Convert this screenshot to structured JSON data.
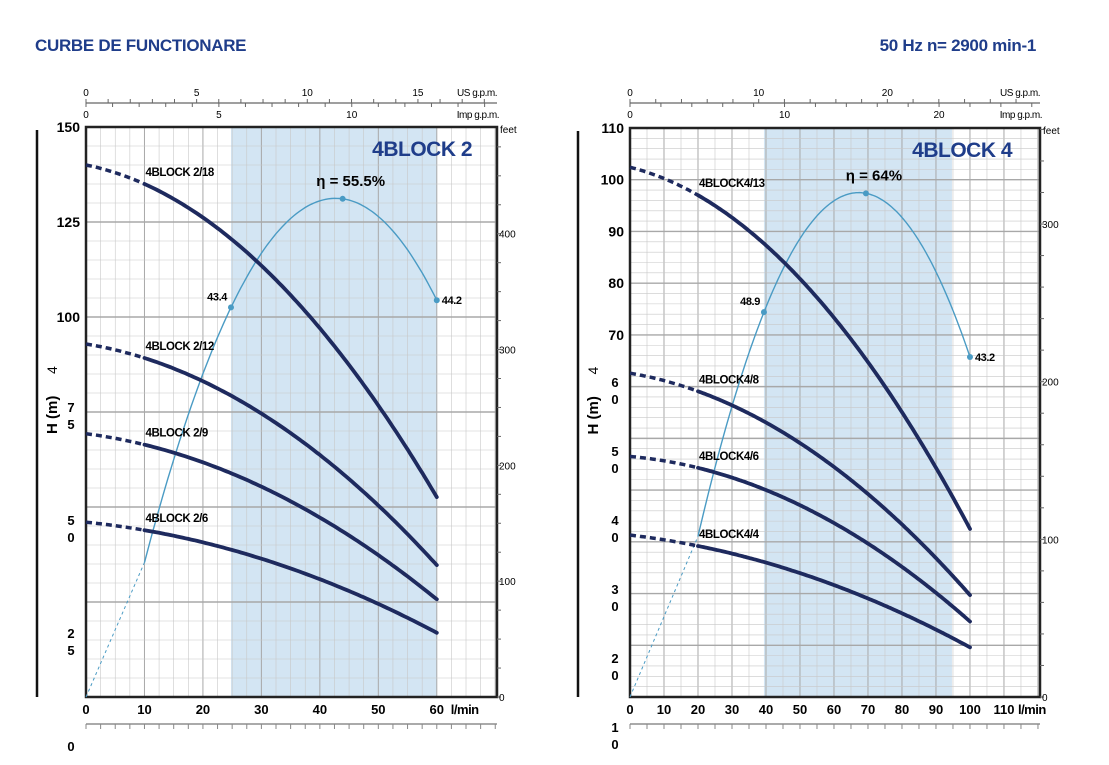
{
  "header": {
    "title": "CURBE DE FUNCTIONARE",
    "speed": "50 Hz  n= 2900 min-1"
  },
  "units": {
    "us_gpm_per_lmin": 0.2642,
    "imp_gpm_per_lmin": 0.22,
    "feet_per_m": 3.281
  },
  "chart_data": [
    {
      "type": "line",
      "title": "4BLOCK 2",
      "xlabel": "l/min",
      "ylabel": "H  (m)",
      "ylabel_extra": "4",
      "top_axis_1": "US g.p.m.",
      "top_axis_2": "Imp g.p.m.",
      "right_axis": "feet",
      "xlim": [
        0,
        70.3
      ],
      "ylim": [
        0,
        150
      ],
      "grid": true,
      "x_ticks": [
        "0",
        "10",
        "20",
        "30",
        "40",
        "50",
        "60"
      ],
      "x_tick_values": [
        0,
        10,
        20,
        30,
        40,
        50,
        60
      ],
      "y_ticks": [
        {
          "text": "150",
          "value": 150,
          "stacked": false
        },
        {
          "text": "125",
          "value": 125,
          "stacked": false
        },
        {
          "text": "100",
          "value": 100,
          "stacked": false
        },
        {
          "text": "75",
          "value": 75,
          "stacked": true
        },
        {
          "text": "50",
          "value": 50,
          "stacked": true
        },
        {
          "text": "25",
          "value": 25,
          "stacked": true
        },
        {
          "text": "0",
          "value": 0,
          "stacked": true
        }
      ],
      "us_ticks": [
        "0",
        "5",
        "10",
        "15"
      ],
      "us_tick_values": [
        0,
        5,
        10,
        15
      ],
      "imp_ticks": [
        "0",
        "5",
        "10"
      ],
      "imp_tick_values": [
        0,
        5,
        10
      ],
      "feet_ticks": [
        "0",
        "100",
        "200",
        "300",
        "400"
      ],
      "feet_tick_values": [
        0,
        100,
        200,
        300,
        400
      ],
      "working_range": [
        24.8,
        60
      ],
      "solid_from": 10,
      "series": [
        {
          "name": "4BLOCK 2/18",
          "points": [
            [
              0,
              140
            ],
            [
              10,
              135
            ],
            [
              60,
              52.6
            ]
          ]
        },
        {
          "name": "4BLOCK 2/12",
          "points": [
            [
              0,
              92.9
            ],
            [
              10,
              89.2
            ],
            [
              60,
              34.7
            ]
          ]
        },
        {
          "name": "4BLOCK 2/9",
          "points": [
            [
              0,
              69.3
            ],
            [
              10,
              66.4
            ],
            [
              60,
              25.7
            ]
          ]
        },
        {
          "name": "4BLOCK 2/6",
          "points": [
            [
              0,
              46
            ],
            [
              10,
              43.9
            ],
            [
              60,
              16.9
            ]
          ]
        }
      ],
      "efficiency": {
        "label": "η = 55.5%",
        "eta_full_scale": 63.5,
        "points": [
          {
            "q": 24.8,
            "eta": 43.4,
            "label": "43.4"
          },
          {
            "q": 43.9,
            "eta": 55.5,
            "label": ""
          },
          {
            "q": 60,
            "eta": 44.2,
            "label": "44.2"
          }
        ]
      }
    },
    {
      "type": "line",
      "title": "4BLOCK 4",
      "xlabel": "l/min",
      "ylabel": "H  (m)",
      "ylabel_extra": "4",
      "top_axis_1": "US g.p.m.",
      "top_axis_2": "Imp g.p.m.",
      "right_axis": "feet",
      "xlim": [
        0,
        120.6
      ],
      "ylim": [
        0,
        110
      ],
      "grid": true,
      "x_ticks": [
        "0",
        "10",
        "20",
        "30",
        "40",
        "50",
        "60",
        "70",
        "80",
        "90",
        "100",
        "110"
      ],
      "x_tick_values": [
        0,
        10,
        20,
        30,
        40,
        50,
        60,
        70,
        80,
        90,
        100,
        110
      ],
      "y_ticks": [
        {
          "text": "110",
          "value": 110,
          "stacked": false
        },
        {
          "text": "100",
          "value": 100,
          "stacked": false
        },
        {
          "text": "90",
          "value": 90,
          "stacked": false
        },
        {
          "text": "80",
          "value": 80,
          "stacked": false
        },
        {
          "text": "70",
          "value": 70,
          "stacked": false
        },
        {
          "text": "60",
          "value": 60,
          "stacked": true
        },
        {
          "text": "50",
          "value": 50,
          "stacked": true
        },
        {
          "text": "40",
          "value": 40,
          "stacked": true
        },
        {
          "text": "30",
          "value": 30,
          "stacked": true
        },
        {
          "text": "20",
          "value": 20,
          "stacked": true
        },
        {
          "text": "10",
          "value": 10,
          "stacked": true
        }
      ],
      "us_ticks": [
        "0",
        "10",
        "20"
      ],
      "us_tick_values": [
        0,
        10,
        20
      ],
      "imp_ticks": [
        "0",
        "10",
        "20"
      ],
      "imp_tick_values": [
        0,
        10,
        20
      ],
      "feet_ticks": [
        "0",
        "100",
        "200",
        "300"
      ],
      "feet_tick_values": [
        0,
        100,
        200,
        300
      ],
      "working_range": [
        39.4,
        94.7
      ],
      "solid_from": 20,
      "series": [
        {
          "name": "4BLOCK4/13",
          "points": [
            [
              0,
              102.4
            ],
            [
              20,
              97
            ],
            [
              100,
              32.5
            ]
          ]
        },
        {
          "name": "4BLOCK4/8",
          "points": [
            [
              0,
              62.6
            ],
            [
              20,
              59.1
            ],
            [
              100,
              19.7
            ]
          ]
        },
        {
          "name": "4BLOCK4/6",
          "points": [
            [
              0,
              46.5
            ],
            [
              20,
              44.3
            ],
            [
              100,
              14.6
            ]
          ]
        },
        {
          "name": "4BLOCK4/4",
          "points": [
            [
              0,
              31.3
            ],
            [
              20,
              29.2
            ],
            [
              100,
              9.6
            ]
          ]
        }
      ],
      "efficiency": {
        "label": "η = 64%",
        "eta_full_scale": 72.3,
        "points": [
          {
            "q": 39.4,
            "eta": 48.9,
            "label": "48.9"
          },
          {
            "q": 69.4,
            "eta": 64,
            "label": ""
          },
          {
            "q": 100,
            "eta": 43.2,
            "label": "43.2"
          }
        ]
      }
    }
  ],
  "colors": {
    "title": "#1f3d8a",
    "curve": "#1e2a5e",
    "efficiency": "#4a9bc4",
    "shade": "#d3e5f3",
    "grid": "#c8c8c8",
    "grid_major": "#a8a8a8"
  }
}
